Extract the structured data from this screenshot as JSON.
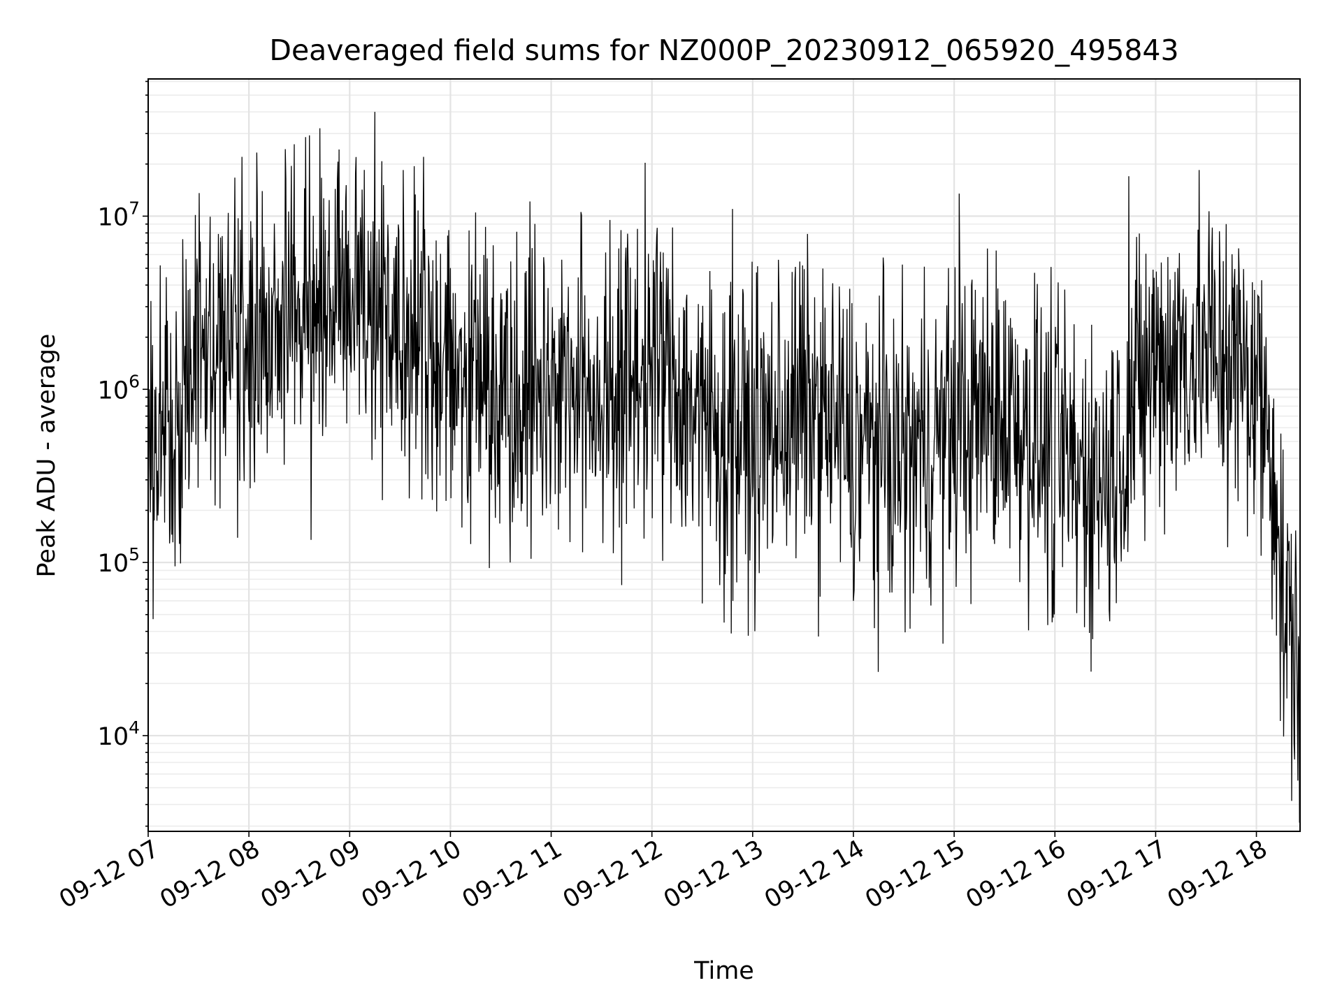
{
  "chart_data": {
    "type": "line",
    "title": "Deaveraged field sums for NZ000P_20230912_065920_495843",
    "xlabel": "Time",
    "ylabel": "Peak ADU - average",
    "x_ticks": [
      "09-12 07",
      "09-12 08",
      "09-12 09",
      "09-12 10",
      "09-12 11",
      "09-12 12",
      "09-12 13",
      "09-12 14",
      "09-12 15",
      "09-12 16",
      "09-12 17",
      "09-12 18"
    ],
    "y_scale": "log",
    "y_ticks": [
      {
        "base": "10",
        "exp": "4",
        "value": 10000
      },
      {
        "base": "10",
        "exp": "5",
        "value": 100000
      },
      {
        "base": "10",
        "exp": "6",
        "value": 1000000
      },
      {
        "base": "10",
        "exp": "7",
        "value": 10000000
      }
    ],
    "xlim": [
      "2023-09-12 07:00",
      "2023-09-12 18:26"
    ],
    "ylim": [
      2800,
      62000000
    ],
    "grid": true,
    "series": [
      {
        "color": "#000000",
        "x_start": "2023-09-12 07:00",
        "x_end": "2023-09-12 18:26",
        "profile_hours": [
          0.0,
          0.3,
          0.5,
          1.0,
          1.5,
          2.0,
          2.5,
          3.0,
          3.5,
          4.0,
          4.5,
          5.0,
          5.5,
          6.0,
          6.5,
          7.0,
          7.5,
          8.0,
          8.5,
          9.0,
          9.5,
          10.0,
          10.5,
          11.0,
          11.18,
          11.25,
          11.43
        ],
        "profile_values": [
          500000,
          800000,
          1600000,
          2000000,
          2600000,
          3400000,
          2800000,
          1300000,
          1100000,
          1100000,
          900000,
          1500000,
          700000,
          500000,
          800000,
          500000,
          400000,
          600000,
          800000,
          400000,
          300000,
          1500000,
          1700000,
          1100000,
          400000,
          60000,
          25000
        ],
        "spikes": [
          {
            "x": "2023-09-12 07:16",
            "y": 95000
          },
          {
            "x": "2023-09-12 08:05",
            "y": 12000000
          },
          {
            "x": "2023-09-12 08:27",
            "y": 26000000
          },
          {
            "x": "2023-09-12 08:37",
            "y": 135000
          },
          {
            "x": "2023-09-12 09:15",
            "y": 40000000
          },
          {
            "x": "2023-09-12 09:44",
            "y": 22000000
          },
          {
            "x": "2023-09-12 10:15",
            "y": 10500000
          },
          {
            "x": "2023-09-12 11:35",
            "y": 9500000
          },
          {
            "x": "2023-09-12 11:42",
            "y": 74000
          },
          {
            "x": "2023-09-12 12:30",
            "y": 58000
          },
          {
            "x": "2023-09-12 12:43",
            "y": 45000
          },
          {
            "x": "2023-09-12 12:48",
            "y": 11000000
          },
          {
            "x": "2023-09-12 14:00",
            "y": 60000
          },
          {
            "x": "2023-09-12 15:03",
            "y": 13500000
          },
          {
            "x": "2023-09-12 15:59",
            "y": 48000
          },
          {
            "x": "2023-09-12 16:13",
            "y": 51000
          },
          {
            "x": "2023-09-12 16:44",
            "y": 17000000
          },
          {
            "x": "2023-09-12 17:42",
            "y": 9000000
          },
          {
            "x": "2023-09-12 18:21",
            "y": 4200
          }
        ]
      }
    ]
  }
}
